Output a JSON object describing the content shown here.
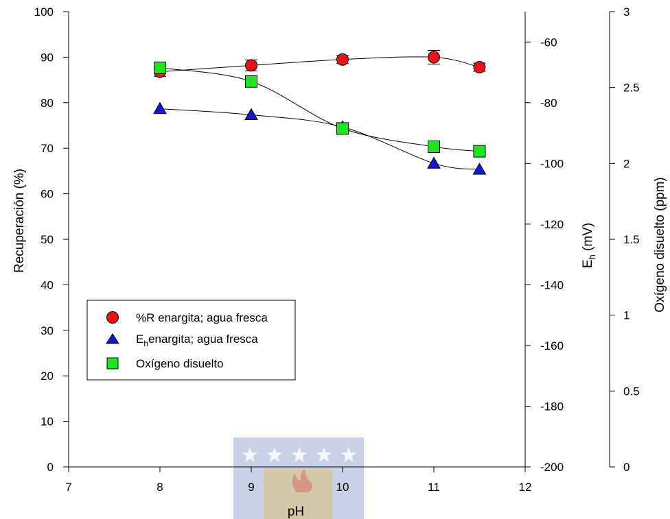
{
  "chart_data": {
    "type": "scatter",
    "title": "",
    "x": [
      8,
      9,
      10,
      11,
      11.5
    ],
    "xlabel": "pH",
    "xlim": [
      7,
      12
    ],
    "xticks": [
      7,
      8,
      9,
      10,
      11,
      12
    ],
    "axes": {
      "left": {
        "label": "Recuperación (%)",
        "lim": [
          0,
          100
        ],
        "ticks": [
          0,
          10,
          20,
          30,
          40,
          50,
          60,
          70,
          80,
          90,
          100
        ]
      },
      "mid": {
        "label_main": "E",
        "label_sub": "h",
        "label_unit": " (mV)",
        "lim": [
          -200,
          -50
        ],
        "ticks": [
          -200,
          -180,
          -160,
          -140,
          -120,
          -100,
          -80,
          -60
        ]
      },
      "right": {
        "label": "Oxígeno disuelto (ppm)",
        "lim": [
          0,
          3
        ],
        "ticks": [
          0,
          0.5,
          1,
          1.5,
          2,
          2.5,
          3
        ]
      }
    },
    "series": [
      {
        "name": "%R enargita; agua fresca",
        "axis": "left",
        "marker": "circle",
        "color": "#e8141b",
        "values": [
          86.8,
          88.2,
          89.5,
          90.0,
          87.8
        ],
        "errors": [
          1.0,
          1.2,
          0.9,
          1.5,
          0.9
        ]
      },
      {
        "name_main": "E",
        "name_sub": "h",
        "name_rest": "enargita; agua fresca",
        "axis": "mid",
        "marker": "triangle",
        "color": "#1515d6",
        "values": [
          -82,
          -84,
          -88,
          -100,
          -102
        ]
      },
      {
        "name": "Oxígeno disuelto",
        "axis": "right",
        "marker": "square",
        "color": "#1ee61e",
        "values": [
          2.63,
          2.54,
          2.23,
          2.11,
          2.08
        ]
      }
    ],
    "legend_position": "lower-left"
  },
  "watermark": {
    "stars": 5,
    "colors": [
      "#3f5aa8",
      "#e9b83a",
      "#d8282e"
    ]
  }
}
